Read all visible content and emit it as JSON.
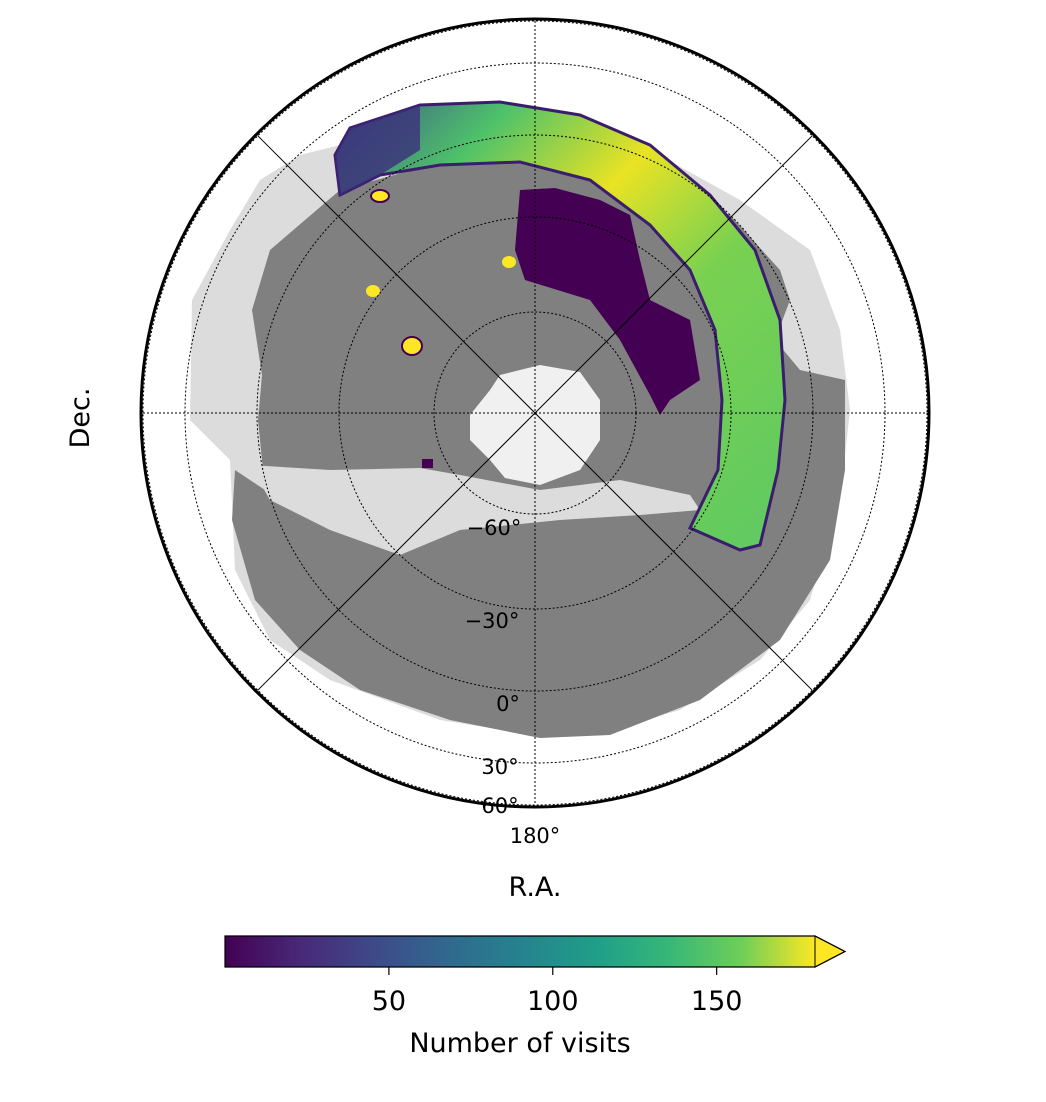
{
  "chart_data": {
    "type": "heatmap",
    "projection": "orthographic (south-pole centered, R.A. / Dec. graticule)",
    "xlabel": "R.A.",
    "ylabel": "Dec.",
    "ra_tick_labels": [
      "180°"
    ],
    "dec_tick_labels": [
      "−60°",
      "−30°",
      "0°",
      "30°",
      "60°"
    ],
    "dec_circles": [
      -60,
      -30,
      0,
      30,
      60
    ],
    "colorbar": {
      "label": "Number of visits",
      "colormap": "viridis",
      "range": [
        0,
        180
      ],
      "extend": "max",
      "ticks": [
        50,
        100,
        150
      ],
      "tick_labels": [
        "50",
        "100",
        "150"
      ]
    },
    "regions": [
      {
        "name": "survey footprint (outer)",
        "color": "#dcdcdc"
      },
      {
        "name": "survey footprint (main)",
        "color": "#808080"
      },
      {
        "name": "south pole cap",
        "color": "#f0f0f0"
      },
      {
        "name": "high-visit arc",
        "visits_range": [
          120,
          180
        ]
      },
      {
        "name": "low-visit patch",
        "visits_range": [
          0,
          10
        ]
      },
      {
        "name": "deep drilling fields",
        "count": 4,
        "visits": 180
      }
    ],
    "grid": true
  }
}
